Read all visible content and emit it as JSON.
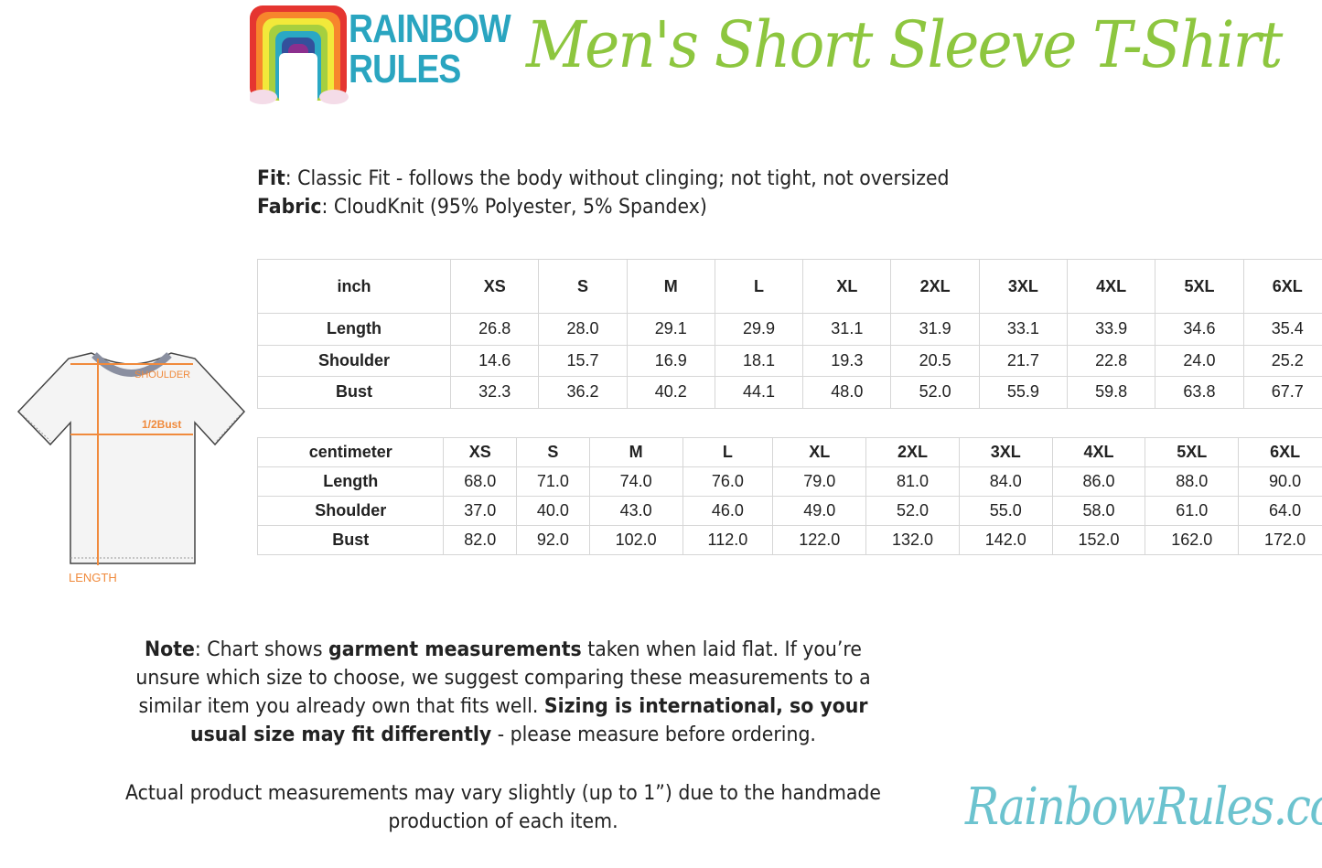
{
  "logo": {
    "text_line1": "RAINBOW",
    "text_line2": "RULES",
    "colors": [
      "#e53530",
      "#f7862c",
      "#f2e93a",
      "#a6cf3f",
      "#2aa8c4",
      "#33509c",
      "#8c2f8e"
    ]
  },
  "title": "Men's Short Sleeve T-Shirt",
  "specs": {
    "fit_label": "Fit",
    "fit_value": ": Classic Fit - follows the body without clinging; not tight, not oversized",
    "fabric_label": "Fabric",
    "fabric_value": ": CloudKnit (95% Polyester, 5% Spandex)"
  },
  "diagram": {
    "shoulder": "SHOULDER",
    "bust": "1/2Bust",
    "length": "LENGTH",
    "arrow_color": "#f08a3c"
  },
  "inch_table": {
    "unit": "inch",
    "sizes": [
      "XS",
      "S",
      "M",
      "L",
      "XL",
      "2XL",
      "3XL",
      "4XL",
      "5XL",
      "6XL"
    ],
    "rows": [
      {
        "label": "Length",
        "values": [
          "26.8",
          "28.0",
          "29.1",
          "29.9",
          "31.1",
          "31.9",
          "33.1",
          "33.9",
          "34.6",
          "35.4"
        ]
      },
      {
        "label": "Shoulder",
        "values": [
          "14.6",
          "15.7",
          "16.9",
          "18.1",
          "19.3",
          "20.5",
          "21.7",
          "22.8",
          "24.0",
          "25.2"
        ]
      },
      {
        "label": "Bust",
        "values": [
          "32.3",
          "36.2",
          "40.2",
          "44.1",
          "48.0",
          "52.0",
          "55.9",
          "59.8",
          "63.8",
          "67.7"
        ]
      }
    ]
  },
  "cm_table": {
    "unit": "centimeter",
    "sizes": [
      "XS",
      "S",
      "M",
      "L",
      "XL",
      "2XL",
      "3XL",
      "4XL",
      "5XL",
      "6XL"
    ],
    "rows": [
      {
        "label": "Length",
        "values": [
          "68.0",
          "71.0",
          "74.0",
          "76.0",
          "79.0",
          "81.0",
          "84.0",
          "86.0",
          "88.0",
          "90.0"
        ]
      },
      {
        "label": "Shoulder",
        "values": [
          "37.0",
          "40.0",
          "43.0",
          "46.0",
          "49.0",
          "52.0",
          "55.0",
          "58.0",
          "61.0",
          "64.0"
        ]
      },
      {
        "label": "Bust",
        "values": [
          "82.0",
          "92.0",
          "102.0",
          "112.0",
          "122.0",
          "132.0",
          "142.0",
          "152.0",
          "162.0",
          "172.0"
        ]
      }
    ]
  },
  "note": {
    "label": "Note",
    "t1": ": Chart shows ",
    "b1": "garment measurements",
    "t2": " taken when laid flat. If you’re unsure which size to choose, we suggest comparing these measurements to a similar item you already own that fits well. ",
    "b2": "Sizing is international, so your usual size may fit differently",
    "t3": " - please measure before ordering."
  },
  "note2": "Actual product measurements may vary slightly (up to 1”) due to the handmade production of each item.",
  "website": "RainbowRules.com"
}
